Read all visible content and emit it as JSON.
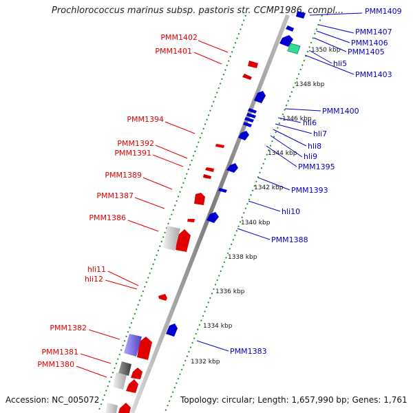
{
  "title": "Prochlorococcus marinus subsp. pastoris str. CCMP1986, compl...",
  "footer": {
    "accession": "Accession: NC_005072",
    "info": "Topology: circular; Length: 1,657,990 bp; Genes: 1,761"
  },
  "colors": {
    "forward": "#e00000",
    "reverse": "#0000cc",
    "backbone": "#8a8a8a",
    "ticks": "#2a8a2a",
    "other_gene": "#33dd99"
  },
  "kbp_marks": [
    "1332 kbp",
    "1334 kbp",
    "1336 kbp",
    "1338 kbp",
    "1340 kbp",
    "1342 kbp",
    "1344 kbp",
    "1346 kbp",
    "1348 kbp",
    "1350 kbp"
  ],
  "left_labels": [
    "PMM1402",
    "PMM1401",
    "PMM1394",
    "PMM1392",
    "PMM1391",
    "PMM1389",
    "PMM1387",
    "PMM1386",
    "hli11",
    "hli12",
    "PMM1382",
    "PMM1381",
    "PMM1380"
  ],
  "right_labels": [
    "PMM1409",
    "PMM1407",
    "PMM1406",
    "PMM1405",
    "hli5",
    "PMM1403",
    "PMM1400",
    "hli6",
    "hli7",
    "hli8",
    "hli9",
    "PMM1395",
    "PMM1393",
    "hli10",
    "PMM1388",
    "PMM1383"
  ]
}
